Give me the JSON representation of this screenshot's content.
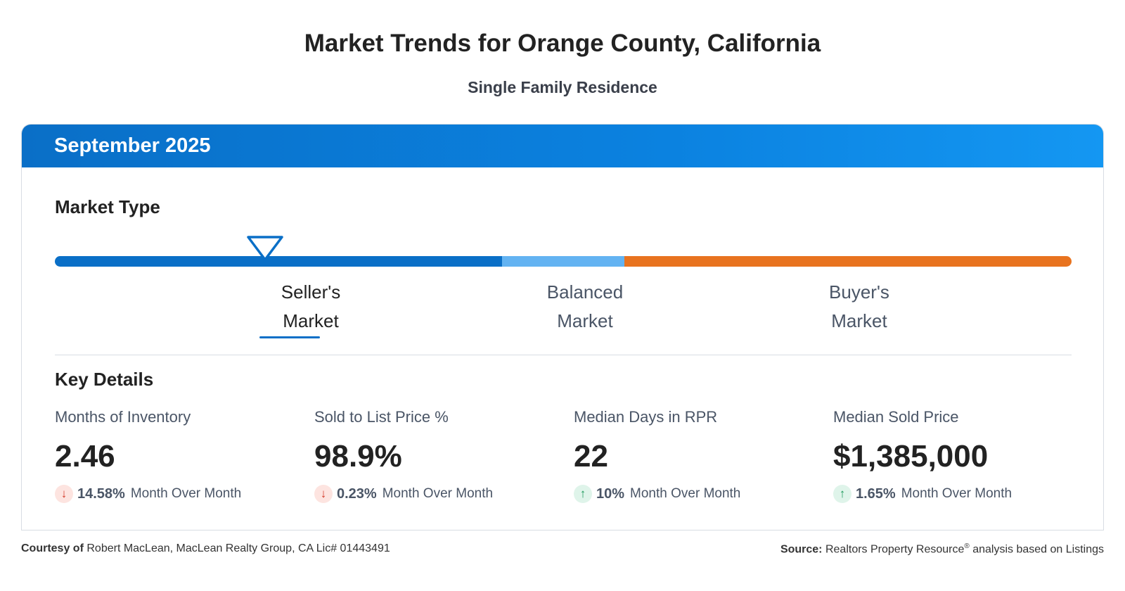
{
  "header": {
    "title": "Market Trends for Orange County, California",
    "subtitle": "Single Family Residence"
  },
  "card": {
    "period": "September 2025",
    "market_type": {
      "title": "Market Type",
      "current": "Seller's Market",
      "options": [
        {
          "line1": "Seller's",
          "line2": "Market",
          "color": "#0a6fc7"
        },
        {
          "line1": "Balanced",
          "line2": "Market",
          "color": "#63b3f2"
        },
        {
          "line1": "Buyer's",
          "line2": "Market",
          "color": "#e8731f"
        }
      ]
    },
    "key_details": {
      "title": "Key Details",
      "metrics": [
        {
          "label": "Months of Inventory",
          "value": "2.46",
          "change": "14.58%",
          "direction": "down",
          "change_text": "Month Over Month"
        },
        {
          "label": "Sold to List Price %",
          "value": "98.9%",
          "change": "0.23%",
          "direction": "down",
          "change_text": "Month Over Month"
        },
        {
          "label": "Median Days in RPR",
          "value": "22",
          "change": "10%",
          "direction": "up",
          "change_text": "Month Over Month"
        },
        {
          "label": "Median Sold Price",
          "value": "$1,385,000",
          "change": "1.65%",
          "direction": "up",
          "change_text": "Month Over Month"
        }
      ]
    }
  },
  "footer": {
    "courtesy_label": "Courtesy of",
    "courtesy_text": "Robert MacLean, MacLean Realty Group, CA Lic# 01443491",
    "source_label": "Source:",
    "source_text_a": "Realtors Property Resource",
    "source_sup": "®",
    "source_text_b": "analysis based on Listings"
  },
  "colors": {
    "header_blue": "#0a6fc7",
    "down": "#d33a2a",
    "up": "#1e9a5c"
  }
}
